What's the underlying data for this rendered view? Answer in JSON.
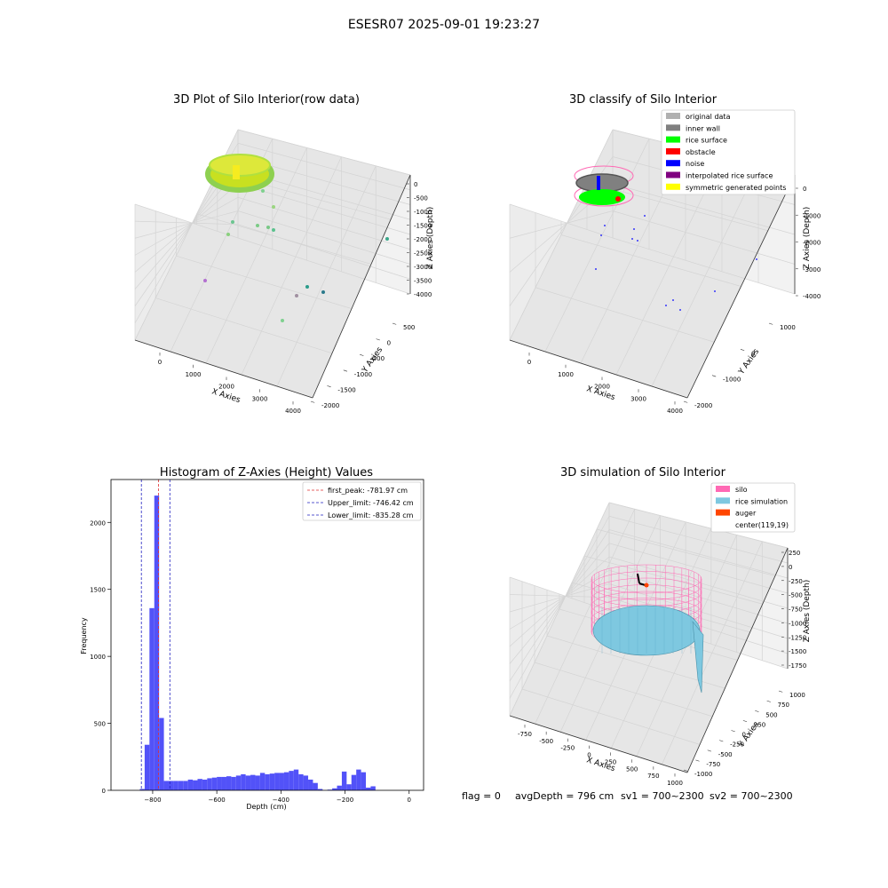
{
  "figure": {
    "suptitle": "ESESR07 2025-09-01 19:23:27",
    "footer": {
      "flag": "flag = 0",
      "avg_depth": "avgDepth = 796 cm",
      "sv1": "sv1 = 700~2300",
      "sv2": "sv2 = 700~2300"
    }
  },
  "colors": {
    "histogram_bar": "#4f4ff8",
    "first_peak_line": "#e03030",
    "limit_line": "#2020c0",
    "silo_wire": "#ff69b4",
    "rice_surface": "#7ec8e0",
    "auger": "#ff4500",
    "rice_green": "#00ff00",
    "noise_blue": "#0000ff",
    "inner_wall_gray": "#808080",
    "original_gray": "#b0b0b0"
  },
  "chart_data": [
    {
      "type": "scatter",
      "title": "3D Plot of Silo Interior(row data)",
      "xlabel": "X Axies",
      "ylabel": "Y Axies",
      "zlabel": "Z Axies (Depth)",
      "x_ticks": [
        "0",
        "1000",
        "2000",
        "3000",
        "4000"
      ],
      "y_ticks": [
        "500",
        "0",
        "-500",
        "-1000",
        "-1500",
        "-2000"
      ],
      "z_ticks": [
        "0",
        "-500",
        "-1000",
        "-1500",
        "-2000",
        "-2500",
        "-3000",
        "-3500",
        "-4000"
      ],
      "xlim": [
        -500,
        4200
      ],
      "ylim": [
        -2100,
        800
      ],
      "zlim": [
        -4200,
        200
      ],
      "cluster": {
        "x_range": [
          0,
          600
        ],
        "y_range": [
          -300,
          300
        ],
        "z_range": [
          -900,
          -700
        ],
        "colors": [
          "#c8e020",
          "#a0e040",
          "#e0e020",
          "#80d060"
        ]
      },
      "outliers": [
        {
          "x": 300,
          "y": 200,
          "z": -1200,
          "color": "#7fd08f"
        },
        {
          "x": 500,
          "y": 100,
          "z": -1400,
          "color": "#9ad580"
        },
        {
          "x": 200,
          "y": -100,
          "z": -1500,
          "color": "#6cc590"
        },
        {
          "x": 800,
          "y": 300,
          "z": -1600,
          "color": "#8ad07e"
        },
        {
          "x": 900,
          "y": 0,
          "z": -1750,
          "color": "#7ccb86"
        },
        {
          "x": 100,
          "y": -400,
          "z": -1700,
          "color": "#79c886"
        },
        {
          "x": 3800,
          "y": 200,
          "z": -2100,
          "color": "#5bc28e"
        },
        {
          "x": 300,
          "y": -1500,
          "z": -3300,
          "color": "#3aa88a"
        },
        {
          "x": 2000,
          "y": -300,
          "z": -3800,
          "color": "#b36fd0"
        },
        {
          "x": 2200,
          "y": 300,
          "z": -3600,
          "color": "#a090a0"
        },
        {
          "x": 2500,
          "y": 0,
          "z": -3700,
          "color": "#2a9c8a"
        },
        {
          "x": 2300,
          "y": -800,
          "z": -4000,
          "color": "#2b7a8c"
        }
      ]
    },
    {
      "type": "scatter",
      "title": "3D classify of Silo Interior",
      "xlabel": "X Axies",
      "ylabel": "Y Axies",
      "zlabel": "Z Axies (Depth)",
      "x_ticks": [
        "0",
        "1000",
        "2000",
        "3000",
        "4000"
      ],
      "y_ticks": [
        "1000",
        "0",
        "-1000",
        "-2000"
      ],
      "z_ticks": [
        "0",
        "-1000",
        "-2000",
        "-3000",
        "-4000"
      ],
      "xlim": [
        -500,
        4200
      ],
      "ylim": [
        -2300,
        1300
      ],
      "zlim": [
        -4200,
        200
      ],
      "legend": [
        {
          "label": "original data",
          "color": "#b0b0b0"
        },
        {
          "label": "inner wall",
          "color": "#808080"
        },
        {
          "label": "rice surface",
          "color": "#00ff00"
        },
        {
          "label": "obstacle",
          "color": "#ff0000"
        },
        {
          "label": "noise",
          "color": "#0000ff"
        },
        {
          "label": "interpolated rice surface",
          "color": "#800080"
        },
        {
          "label": "symmetric generated points",
          "color": "#ffff00"
        }
      ],
      "noise_points": [
        {
          "x": 700,
          "y": 200,
          "z": -1200
        },
        {
          "x": 800,
          "y": -200,
          "z": -1500
        },
        {
          "x": 500,
          "y": -400,
          "z": -1300
        },
        {
          "x": 1200,
          "y": 0,
          "z": -1400
        },
        {
          "x": 900,
          "y": 400,
          "z": -1700
        },
        {
          "x": 3900,
          "y": 300,
          "z": -2200
        },
        {
          "x": 200,
          "y": -1600,
          "z": -3300
        },
        {
          "x": 2600,
          "y": 200,
          "z": -3700
        },
        {
          "x": 2000,
          "y": -300,
          "z": -3900
        },
        {
          "x": 2100,
          "y": 100,
          "z": -3800
        }
      ]
    },
    {
      "type": "bar",
      "title": "Histogram of Z-Axies (Height) Values",
      "xlabel": "Depth (cm)",
      "ylabel": "Frequency",
      "xlim": [
        -930,
        45
      ],
      "ylim": [
        0,
        2320
      ],
      "x_ticks": [
        -800,
        -600,
        -400,
        -200,
        0
      ],
      "y_ticks": [
        0,
        500,
        1000,
        1500,
        2000
      ],
      "bin_width": 15,
      "bins_start": -840,
      "values": [
        10,
        340,
        1360,
        2200,
        540,
        70,
        70,
        70,
        70,
        70,
        80,
        75,
        85,
        80,
        90,
        95,
        100,
        100,
        105,
        100,
        110,
        120,
        110,
        115,
        110,
        130,
        120,
        125,
        130,
        130,
        135,
        145,
        155,
        120,
        110,
        80,
        55,
        10,
        0,
        5,
        15,
        35,
        140,
        45,
        115,
        155,
        135,
        20,
        30
      ],
      "legend": [
        {
          "label": "first_peak: -781.97 cm",
          "value": -781.97,
          "color": "#e03030"
        },
        {
          "label": "Upper_limit: -746.42 cm",
          "value": -746.42,
          "color": "#2020c0"
        },
        {
          "label": "Lower_limit: -835.28 cm",
          "value": -835.28,
          "color": "#2020c0"
        }
      ]
    },
    {
      "type": "area",
      "title": "3D simulation of Silo Interior",
      "xlabel": "X Axies",
      "ylabel": "Y Axies",
      "zlabel": "Z Axies (Depth)",
      "x_ticks": [
        "-750",
        "-500",
        "-250",
        "0",
        "250",
        "500",
        "750",
        "1000"
      ],
      "y_ticks": [
        "1000",
        "750",
        "500",
        "250",
        "0",
        "-250",
        "-500",
        "-750",
        "-1000"
      ],
      "z_ticks": [
        "250",
        "0",
        "-250",
        "-500",
        "-750",
        "-1000",
        "-1250",
        "-1500",
        "-1750"
      ],
      "legend": [
        {
          "label": "silo",
          "color": "#ff69b4"
        },
        {
          "label": "rice simulation",
          "color": "#7ec8e0"
        },
        {
          "label": "auger",
          "color": "#ff4500"
        },
        {
          "label": "center(119,19)",
          "color": ""
        }
      ]
    }
  ]
}
